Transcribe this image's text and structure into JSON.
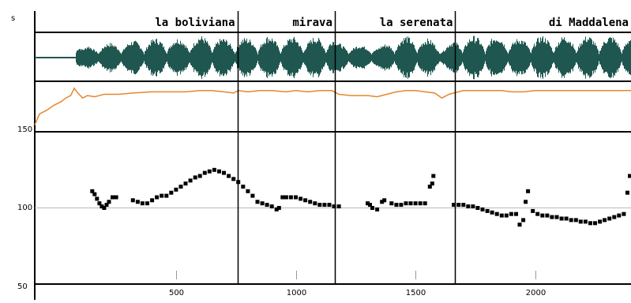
{
  "tiers": {
    "corner_label": "s",
    "segments": [
      {
        "label": "la boliviana",
        "start": 0,
        "end": 756
      },
      {
        "label": "mirava",
        "start": 756,
        "end": 1163
      },
      {
        "label": "la serenata",
        "start": 1163,
        "end": 1666
      },
      {
        "label": "di Maddalena",
        "start": 1666,
        "end": 2400
      }
    ]
  },
  "time_axis": {
    "min": -90,
    "max": 2400,
    "ticks": [
      {
        "value": 500,
        "label": "500"
      },
      {
        "value": 1000,
        "label": "1000"
      },
      {
        "value": 1500,
        "label": "1500"
      },
      {
        "value": 2000,
        "label": "2000"
      }
    ]
  },
  "pitch_axis": {
    "min": 50,
    "max": 150,
    "labels": [
      {
        "value": 150,
        "label": "150"
      },
      {
        "value": 100,
        "label": "100"
      },
      {
        "value": 50,
        "label": "50"
      }
    ],
    "reference": 100
  },
  "colors": {
    "waveform": "#1f5750",
    "intensity": "#e8862c",
    "pitch": "#000000",
    "grid": "#bbbbbb"
  },
  "chart_data": {
    "type": "scatter",
    "x_unit": "ms",
    "y_unit": "Hz",
    "xlim": [
      -90,
      2400
    ],
    "ylim": [
      50,
      150
    ],
    "boundaries": [
      756,
      1163,
      1666
    ],
    "pitch": [
      [
        150,
        111
      ],
      [
        160,
        109
      ],
      [
        170,
        106
      ],
      [
        180,
        103
      ],
      [
        190,
        101
      ],
      [
        200,
        100
      ],
      [
        210,
        102
      ],
      [
        220,
        104
      ],
      [
        235,
        107
      ],
      [
        250,
        107
      ],
      [
        320,
        105
      ],
      [
        340,
        104
      ],
      [
        360,
        103
      ],
      [
        380,
        103
      ],
      [
        400,
        105
      ],
      [
        420,
        107
      ],
      [
        440,
        108
      ],
      [
        460,
        108
      ],
      [
        480,
        110
      ],
      [
        500,
        112
      ],
      [
        520,
        114
      ],
      [
        540,
        116
      ],
      [
        560,
        118
      ],
      [
        580,
        120
      ],
      [
        600,
        121
      ],
      [
        620,
        123
      ],
      [
        640,
        124
      ],
      [
        660,
        125
      ],
      [
        680,
        124
      ],
      [
        700,
        123
      ],
      [
        720,
        121
      ],
      [
        740,
        119
      ],
      [
        760,
        117
      ],
      [
        780,
        114
      ],
      [
        800,
        111
      ],
      [
        820,
        108
      ],
      [
        840,
        104
      ],
      [
        860,
        103
      ],
      [
        880,
        102
      ],
      [
        900,
        101
      ],
      [
        920,
        99
      ],
      [
        930,
        100
      ],
      [
        945,
        107
      ],
      [
        960,
        107
      ],
      [
        980,
        107
      ],
      [
        1000,
        107
      ],
      [
        1020,
        106
      ],
      [
        1040,
        105
      ],
      [
        1060,
        104
      ],
      [
        1080,
        103
      ],
      [
        1100,
        102
      ],
      [
        1120,
        102
      ],
      [
        1140,
        102
      ],
      [
        1160,
        101
      ],
      [
        1180,
        101
      ],
      [
        1300,
        103
      ],
      [
        1310,
        102
      ],
      [
        1320,
        100
      ],
      [
        1340,
        99
      ],
      [
        1360,
        104
      ],
      [
        1370,
        105
      ],
      [
        1400,
        103
      ],
      [
        1420,
        102
      ],
      [
        1440,
        102
      ],
      [
        1460,
        103
      ],
      [
        1480,
        103
      ],
      [
        1500,
        103
      ],
      [
        1520,
        103
      ],
      [
        1540,
        103
      ],
      [
        1560,
        114
      ],
      [
        1570,
        116
      ],
      [
        1575,
        121
      ],
      [
        1660,
        102
      ],
      [
        1680,
        102
      ],
      [
        1700,
        102
      ],
      [
        1720,
        101
      ],
      [
        1740,
        101
      ],
      [
        1760,
        100
      ],
      [
        1780,
        99
      ],
      [
        1800,
        98
      ],
      [
        1820,
        97
      ],
      [
        1840,
        96
      ],
      [
        1860,
        95
      ],
      [
        1880,
        95
      ],
      [
        1900,
        96
      ],
      [
        1920,
        96
      ],
      [
        1935,
        89
      ],
      [
        1950,
        92
      ],
      [
        1960,
        104
      ],
      [
        1970,
        111
      ],
      [
        1990,
        98
      ],
      [
        2010,
        96
      ],
      [
        2030,
        95
      ],
      [
        2050,
        95
      ],
      [
        2070,
        94
      ],
      [
        2090,
        94
      ],
      [
        2110,
        93
      ],
      [
        2130,
        93
      ],
      [
        2150,
        92
      ],
      [
        2170,
        92
      ],
      [
        2190,
        91
      ],
      [
        2210,
        91
      ],
      [
        2230,
        90
      ],
      [
        2250,
        90
      ],
      [
        2270,
        91
      ],
      [
        2290,
        92
      ],
      [
        2310,
        93
      ],
      [
        2330,
        94
      ],
      [
        2350,
        95
      ],
      [
        2370,
        96
      ],
      [
        2385,
        110
      ],
      [
        2395,
        121
      ]
    ],
    "intensity": [
      [
        -90,
        60
      ],
      [
        -70,
        69
      ],
      [
        -40,
        72
      ],
      [
        -10,
        76
      ],
      [
        20,
        79
      ],
      [
        40,
        82
      ],
      [
        60,
        84
      ],
      [
        75,
        90
      ],
      [
        90,
        86
      ],
      [
        110,
        82
      ],
      [
        130,
        84
      ],
      [
        160,
        83
      ],
      [
        200,
        85
      ],
      [
        260,
        85
      ],
      [
        320,
        86
      ],
      [
        400,
        87
      ],
      [
        470,
        87
      ],
      [
        540,
        87
      ],
      [
        600,
        88
      ],
      [
        650,
        88
      ],
      [
        700,
        87
      ],
      [
        740,
        86
      ],
      [
        760,
        88
      ],
      [
        800,
        87
      ],
      [
        850,
        88
      ],
      [
        900,
        88
      ],
      [
        960,
        87
      ],
      [
        1000,
        88
      ],
      [
        1050,
        87
      ],
      [
        1100,
        88
      ],
      [
        1150,
        88
      ],
      [
        1180,
        85
      ],
      [
        1230,
        84
      ],
      [
        1300,
        84
      ],
      [
        1340,
        83
      ],
      [
        1380,
        85
      ],
      [
        1420,
        87
      ],
      [
        1460,
        88
      ],
      [
        1500,
        88
      ],
      [
        1540,
        87
      ],
      [
        1580,
        86
      ],
      [
        1610,
        82
      ],
      [
        1640,
        85
      ],
      [
        1660,
        86
      ],
      [
        1700,
        88
      ],
      [
        1780,
        88
      ],
      [
        1860,
        88
      ],
      [
        1900,
        87
      ],
      [
        1950,
        87
      ],
      [
        2000,
        88
      ],
      [
        2100,
        88
      ],
      [
        2200,
        88
      ],
      [
        2300,
        88
      ],
      [
        2400,
        88
      ]
    ]
  }
}
